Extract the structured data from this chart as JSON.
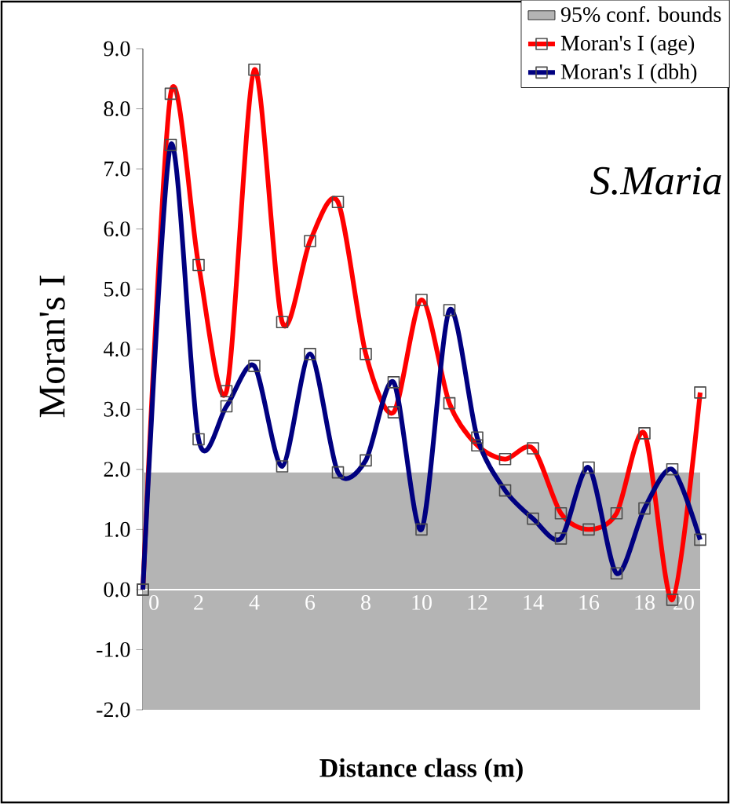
{
  "chart_data": {
    "type": "line",
    "xlabel": "Distance class (m)",
    "ylabel": "Moran's I",
    "x": [
      0,
      1,
      2,
      3,
      4,
      5,
      6,
      7,
      8,
      9,
      10,
      11,
      12,
      13,
      14,
      15,
      16,
      17,
      18,
      19,
      20
    ],
    "series": [
      {
        "name": "Moran's I (age)",
        "color": "#ff0000",
        "values": [
          0,
          8.25,
          5.4,
          3.3,
          8.65,
          4.45,
          5.8,
          6.45,
          3.92,
          2.95,
          4.82,
          3.1,
          2.4,
          2.17,
          2.35,
          1.27,
          1.0,
          1.27,
          2.6,
          -0.17,
          3.28
        ]
      },
      {
        "name": "Moran's I (dbh)",
        "color": "#000080",
        "values": [
          0,
          7.4,
          2.5,
          3.05,
          3.72,
          2.05,
          3.92,
          1.95,
          2.15,
          3.45,
          1.0,
          4.65,
          2.53,
          1.65,
          1.18,
          0.85,
          2.03,
          0.27,
          1.35,
          2.0,
          0.83
        ]
      }
    ],
    "bands": [
      {
        "axis": "y",
        "from": -2,
        "to": 1.95,
        "label": "95% conf. bounds",
        "color": "#b4b4b4"
      }
    ],
    "annotations": [
      "S.Maria"
    ],
    "xlim": [
      0,
      20
    ],
    "xticks": [
      0,
      2,
      4,
      6,
      8,
      10,
      12,
      14,
      16,
      18,
      20
    ],
    "ylim": [
      -2,
      9
    ],
    "yticks": [
      {
        "value": -2,
        "label": "-2.0"
      },
      {
        "value": -1,
        "label": "-1.0"
      },
      {
        "value": 0,
        "label": "0.0"
      },
      {
        "value": 1,
        "label": "1.0"
      },
      {
        "value": 2,
        "label": "2.0"
      },
      {
        "value": 3,
        "label": "3.0"
      },
      {
        "value": 4,
        "label": "4.0"
      },
      {
        "value": 5,
        "label": "5.0"
      },
      {
        "value": 6,
        "label": "6.0"
      },
      {
        "value": 7,
        "label": "7.0"
      },
      {
        "value": 8,
        "label": "8.0"
      },
      {
        "value": 9,
        "label": "9.0"
      }
    ],
    "grid": false,
    "legend": "top right",
    "marker": "square",
    "line_style": "solid"
  }
}
